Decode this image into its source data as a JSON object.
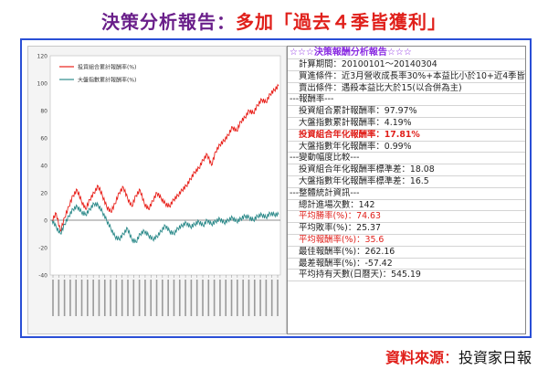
{
  "header": {
    "title_part1": "決策分析報告：",
    "title_part2": "多加「過去４季皆獲利」"
  },
  "panel": {
    "rows": [
      {
        "text": "☆☆☆決策報酬分析報告☆☆☆",
        "style": "head"
      },
      {
        "text": "計算期間：20100101～20140304",
        "style": "indent"
      },
      {
        "text": "買進條件：近3月營收成長率30%+本益比小於10+近4季皆獲利",
        "style": "indent"
      },
      {
        "text": "賣出條件：遇殺本益比大於15(以合併為主)",
        "style": "indent"
      },
      {
        "text": "---報酬率---",
        "style": ""
      },
      {
        "text": "投資組合累計報酬率：97.97%",
        "style": "indent"
      },
      {
        "text": "大盤指數累計報酬率：4.19%",
        "style": "indent"
      },
      {
        "text": "投資組合年化報酬率：17.81%",
        "style": "indent red hl"
      },
      {
        "text": "大盤指數年化報酬率：0.99%",
        "style": "indent"
      },
      {
        "text": "---變動幅度比較---",
        "style": ""
      },
      {
        "text": "投資組合年化報酬率標準差：18.08",
        "style": "indent"
      },
      {
        "text": "大盤指數年化報酬率標準差：16.5",
        "style": "indent"
      },
      {
        "text": "---整體統計資訊---",
        "style": ""
      },
      {
        "text": "總計進場次數：142",
        "style": "indent"
      },
      {
        "text": "平均勝率(%)：74.63",
        "style": "indent red"
      },
      {
        "text": "平均敗率(%)：25.37",
        "style": "indent"
      },
      {
        "text": "平均報酬率(%)：35.6",
        "style": "indent red"
      },
      {
        "text": "最佳報酬率(%)：262.16",
        "style": "indent"
      },
      {
        "text": "最差報酬率(%)：-57.42",
        "style": "indent"
      },
      {
        "text": "平均持有天數(日曆天)：545.19",
        "style": "indent"
      }
    ]
  },
  "source": {
    "label": "資料來源",
    "sep": "：",
    "value": "投資家日報"
  },
  "chart_data": {
    "type": "line",
    "title": "",
    "xlabel": "",
    "ylabel": "",
    "ylim": [
      -40,
      120
    ],
    "yticks": [
      -40,
      -20,
      0,
      20,
      40,
      60,
      80,
      100,
      120
    ],
    "grid": false,
    "legend": "top-left",
    "series": [
      {
        "name": "投資組合累計報酬率(%)",
        "color": "#e8201a",
        "values": [
          0,
          5,
          -8,
          2,
          10,
          18,
          22,
          14,
          8,
          15,
          20,
          25,
          18,
          10,
          6,
          12,
          20,
          24,
          16,
          10,
          18,
          22,
          12,
          8,
          14,
          20,
          16,
          12,
          10,
          15,
          18,
          22,
          25,
          30,
          35,
          38,
          44,
          48,
          40,
          50,
          55,
          58,
          62,
          68,
          65,
          72,
          75,
          80,
          78,
          84,
          88,
          86,
          92,
          95,
          98
        ]
      },
      {
        "name": "大盤指數累計報酬率(%)",
        "color": "#2e8b8b",
        "values": [
          0,
          -5,
          -10,
          -3,
          3,
          8,
          10,
          6,
          4,
          8,
          12,
          11,
          6,
          0,
          -6,
          -12,
          -14,
          -10,
          -6,
          -14,
          -16,
          -10,
          -8,
          -11,
          -14,
          -12,
          -8,
          -4,
          -8,
          -10,
          -6,
          -4,
          -2,
          -5,
          -3,
          -1,
          -4,
          0,
          -3,
          -1,
          1,
          -2,
          0,
          2,
          -1,
          1,
          3,
          2,
          0,
          3,
          4,
          2,
          5,
          4,
          4.19
        ]
      }
    ]
  }
}
